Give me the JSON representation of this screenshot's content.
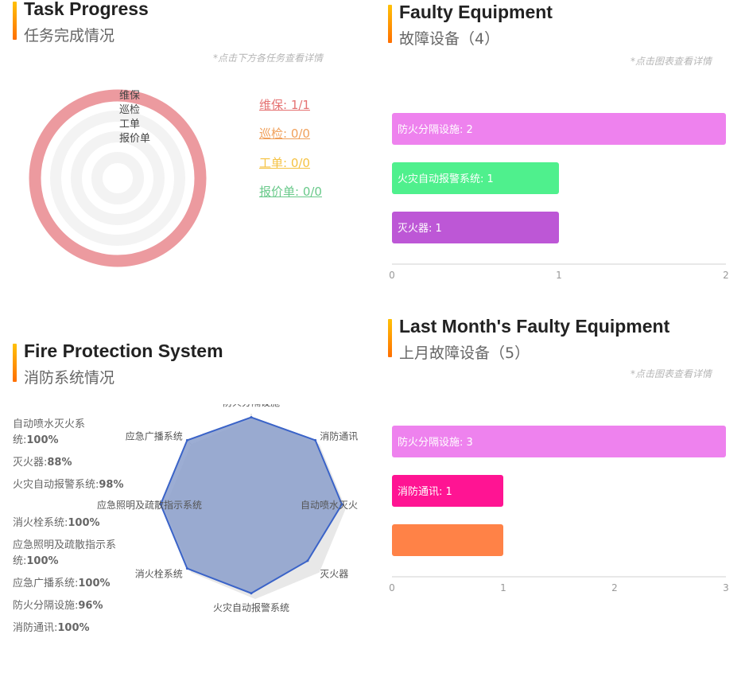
{
  "task_progress": {
    "title_en": "Task Progress",
    "title_cn": "任务完成情况",
    "hint": "*点击下方各任务查看详情",
    "ring_labels": [
      "维保",
      "巡检",
      "工单",
      "报价单"
    ],
    "legend": [
      {
        "label": "维保: 1/1",
        "color": "#e57373"
      },
      {
        "label": "巡检: 0/0",
        "color": "#f0a05a"
      },
      {
        "label": "工单: 0/0",
        "color": "#f5c242"
      },
      {
        "label": "报价单: 0/0",
        "color": "#69c98a"
      }
    ]
  },
  "faulty_equipment": {
    "title_en": "Faulty Equipment",
    "title_cn": "故障设备（4）",
    "hint": "*点击图表查看详情"
  },
  "fire_protection": {
    "title_en": "Fire Protection System",
    "title_cn": "消防系统情况",
    "stats": [
      {
        "name": "自动喷水灭火系统:",
        "value": "100%"
      },
      {
        "name": "灭火器:",
        "value": "88%"
      },
      {
        "name": "火灾自动报警系统:",
        "value": "98%"
      },
      {
        "name": "消火栓系统:",
        "value": "100%"
      },
      {
        "name": "应急照明及疏散指示系统:",
        "value": "100%"
      },
      {
        "name": "应急广播系统:",
        "value": "100%"
      },
      {
        "name": "防火分隔设施:",
        "value": "96%"
      },
      {
        "name": "消防通讯:",
        "value": "100%"
      }
    ]
  },
  "last_month": {
    "title_en": "Last Month's Faulty Equipment",
    "title_cn": "上月故障设备（5）",
    "hint": "*点击图表查看详情"
  },
  "chart_data": [
    {
      "type": "pie",
      "title": "任务完成情况",
      "categories": [
        "维保",
        "巡检",
        "工单",
        "报价单"
      ],
      "values": [
        1,
        0,
        0,
        0
      ],
      "totals": [
        1,
        0,
        0,
        0
      ],
      "colors": [
        "#ec9a9f",
        "#f0a05a",
        "#f5c242",
        "#69c98a"
      ]
    },
    {
      "type": "bar",
      "orientation": "horizontal",
      "title": "故障设备（4）",
      "categories": [
        "防火分隔设施",
        "火灾自动报警系统",
        "灭火器"
      ],
      "values": [
        2,
        1,
        1
      ],
      "bar_labels": [
        "防火分隔设施: 2",
        "火灾自动报警系统: 1",
        "灭火器: 1"
      ],
      "colors": [
        "#ee82ee",
        "#4ff08d",
        "#bd57d6"
      ],
      "xlim": [
        0,
        2
      ],
      "x_ticks": [
        "0",
        "1",
        "2"
      ]
    },
    {
      "type": "radar",
      "title": "消防系统情况",
      "indicators": [
        "防火分隔设施",
        "消防通讯",
        "自动喷水灭火",
        "灭火器",
        "火灾自动报警系统",
        "消火栓系统",
        "应急照明及疏散指示系统",
        "应急广播系统"
      ],
      "values": [
        96,
        100,
        100,
        88,
        98,
        100,
        100,
        100
      ],
      "max": 100,
      "fill": "#8b9fcb",
      "stroke": "#3a63c8"
    },
    {
      "type": "bar",
      "orientation": "horizontal",
      "title": "上月故障设备（5）",
      "categories": [
        "防火分隔设施",
        "消防通讯",
        ""
      ],
      "values": [
        3,
        1,
        1
      ],
      "bar_labels": [
        "防火分隔设施: 3",
        "消防通讯: 1",
        ""
      ],
      "colors": [
        "#ee82ee",
        "#ff1493",
        "#ff8247"
      ],
      "xlim": [
        0,
        3
      ],
      "x_ticks": [
        "0",
        "1",
        "2",
        "3"
      ]
    }
  ]
}
